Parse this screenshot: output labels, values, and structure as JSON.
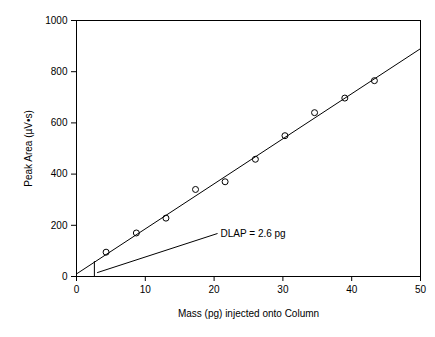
{
  "chart_data": {
    "type": "scatter",
    "x_label": "Mass (pg) injected onto Column",
    "y_label": "Peak Area (µV•s)",
    "xlim": [
      0,
      50
    ],
    "ylim": [
      0,
      1000
    ],
    "xticks": [
      0,
      10,
      20,
      30,
      40,
      50
    ],
    "yticks": [
      0,
      200,
      400,
      600,
      800,
      1000
    ],
    "grid": false,
    "series": [
      {
        "type": "scatter",
        "marker": "open circle",
        "color": "#000000",
        "x": [
          4.3,
          8.7,
          13.0,
          17.3,
          21.6,
          26.0,
          30.3,
          34.6,
          39.0,
          43.3
        ],
        "values": [
          95,
          170,
          228,
          340,
          370,
          458,
          550,
          640,
          697,
          765
        ]
      },
      {
        "type": "line",
        "line_style": "solid",
        "color": "#000000",
        "x": [
          0,
          50
        ],
        "values": [
          10,
          890
        ]
      }
    ],
    "annotations": [
      {
        "text": "DLAP = 2.6 pg",
        "x": 20.5,
        "y": 168,
        "line_from": [
          3.0,
          15
        ],
        "vline": {
          "x": 2.6,
          "y": [
            0,
            58
          ]
        }
      }
    ]
  }
}
